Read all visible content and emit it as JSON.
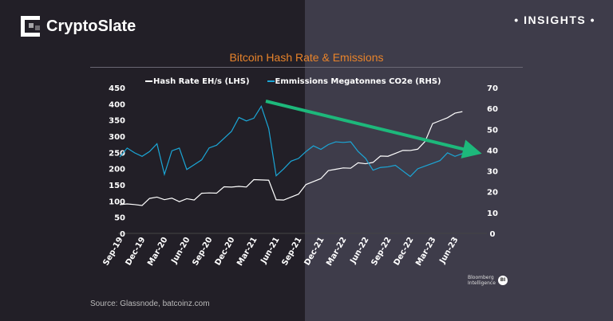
{
  "brand": {
    "name": "CryptoSlate",
    "badge": "• INSIGHTS •"
  },
  "source": "Source: Glassnode, batcoinz.com",
  "watermark": {
    "line1": "Bloomberg",
    "line2": "Intelligence",
    "badge": "BI"
  },
  "chart_data": {
    "type": "line",
    "title": "Bitcoin Hash Rate & Emissions",
    "x": [
      "2019-09",
      "2019-10",
      "2019-11",
      "2019-12",
      "2020-01",
      "2020-02",
      "2020-03",
      "2020-04",
      "2020-05",
      "2020-06",
      "2020-07",
      "2020-08",
      "2020-09",
      "2020-10",
      "2020-11",
      "2020-12",
      "2021-01",
      "2021-02",
      "2021-03",
      "2021-04",
      "2021-05",
      "2021-06",
      "2021-07",
      "2021-08",
      "2021-09",
      "2021-10",
      "2021-11",
      "2021-12",
      "2022-01",
      "2022-02",
      "2022-03",
      "2022-04",
      "2022-05",
      "2022-06",
      "2022-07",
      "2022-08",
      "2022-09",
      "2022-10",
      "2022-11",
      "2022-12",
      "2023-01",
      "2023-02",
      "2023-03",
      "2023-04",
      "2023-05",
      "2023-06",
      "2023-07"
    ],
    "x_tick_labels": [
      "Sep-19",
      "Dec-19",
      "Mar-20",
      "Jun-20",
      "Sep-20",
      "Dec-20",
      "Mar-21",
      "Jun-21",
      "Sep-21",
      "Dec-21",
      "Mar-22",
      "Jun-22",
      "Sep-22",
      "Dec-22",
      "Mar-23",
      "Jun-23"
    ],
    "series": [
      {
        "name": "Hash Rate EH/s (LHS)",
        "axis": "left",
        "color": "#ffffff",
        "values": [
          80,
          88,
          92,
          95,
          102,
          112,
          110,
          100,
          95,
          110,
          112,
          118,
          125,
          130,
          135,
          140,
          148,
          152,
          160,
          165,
          170,
          95,
          100,
          115,
          130,
          145,
          160,
          175,
          185,
          195,
          205,
          210,
          212,
          215,
          225,
          230,
          235,
          250,
          265,
          250,
          260,
          290,
          330,
          345,
          360,
          380,
          370
        ]
      },
      {
        "name": "Emmissions Megatonnes CO2e (RHS)",
        "axis": "right",
        "color": "#1ba6d6",
        "values": [
          37,
          42,
          38,
          37,
          40,
          42,
          28,
          40,
          42,
          30,
          33,
          36,
          40,
          42,
          46,
          50,
          55,
          54,
          56,
          60,
          50,
          28,
          32,
          34,
          36,
          40,
          41,
          40,
          43,
          45,
          43,
          44,
          40,
          35,
          30,
          32,
          33,
          32,
          30,
          28,
          30,
          32,
          34,
          36,
          38,
          37,
          39
        ]
      }
    ],
    "y_left": {
      "range": [
        0,
        450
      ],
      "ticks": [
        0,
        50,
        100,
        150,
        200,
        250,
        300,
        350,
        400,
        450
      ]
    },
    "y_right": {
      "range": [
        0,
        70
      ],
      "ticks": [
        0,
        10,
        20,
        30,
        40,
        50,
        60,
        70
      ]
    },
    "legend_placement": "top",
    "annotation": {
      "type": "arrow",
      "color": "#1db87b",
      "from": "2021-04",
      "to": "2023-07",
      "direction": "downward"
    },
    "grid": false
  }
}
